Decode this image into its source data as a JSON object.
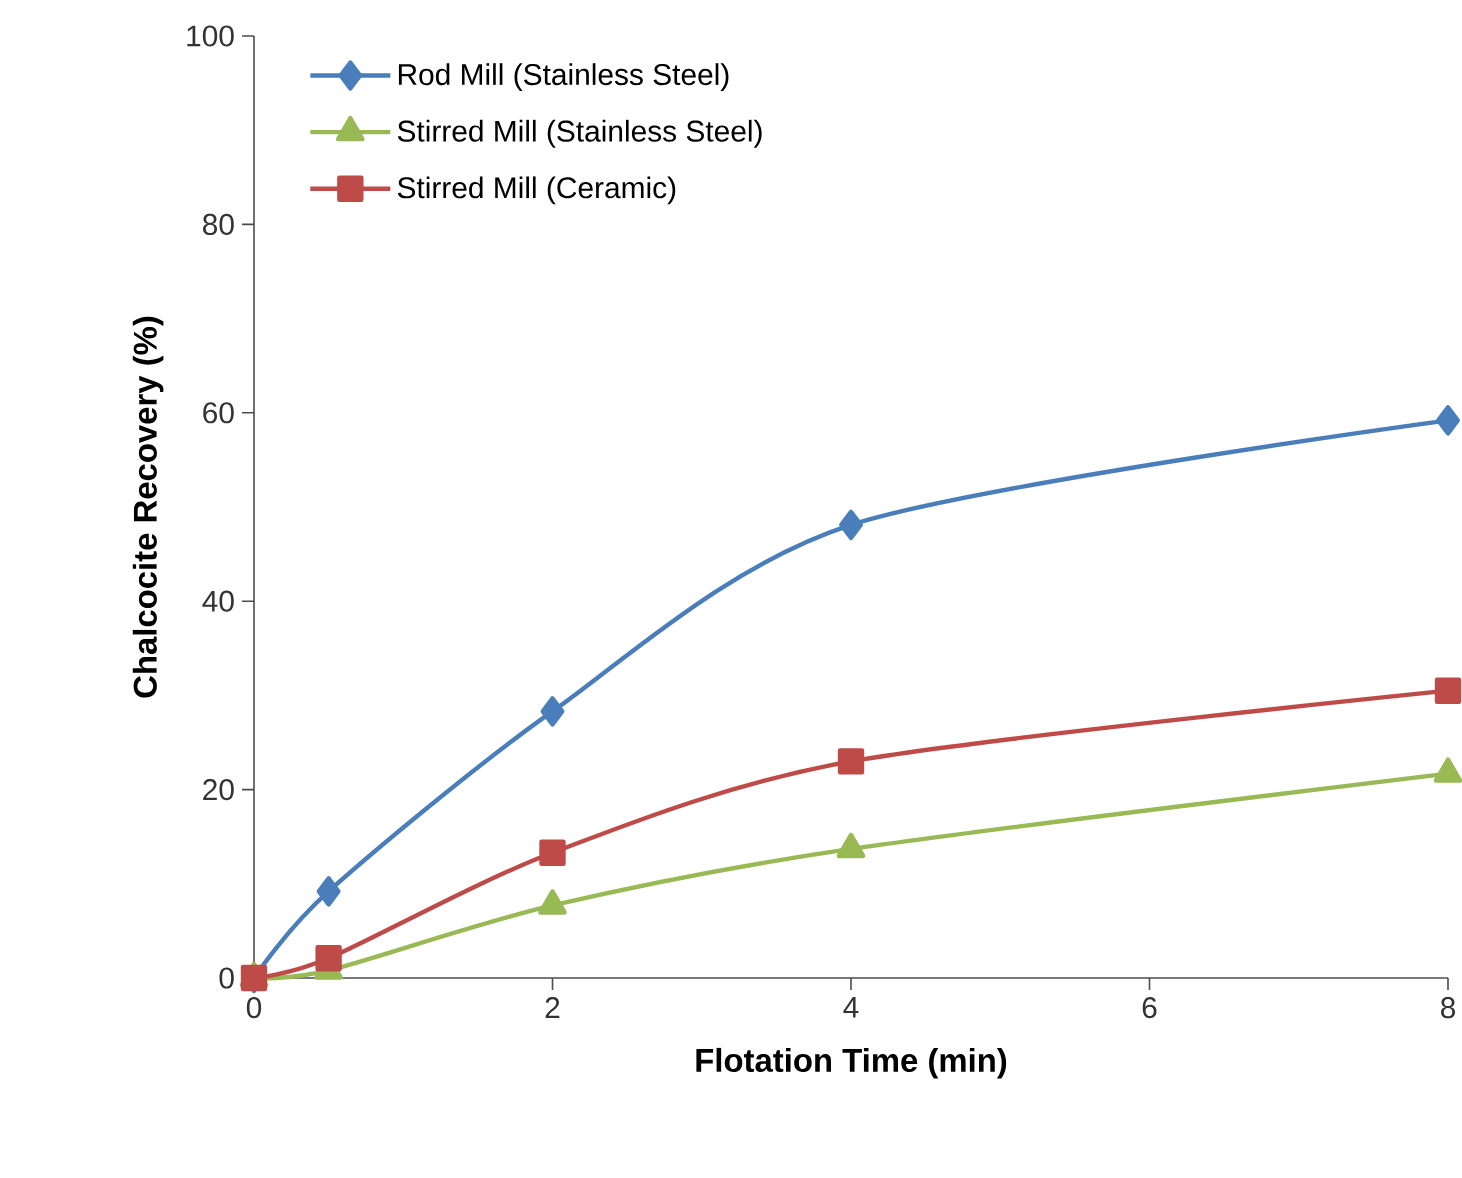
{
  "chart_data": {
    "type": "line",
    "xlabel": "Flotation Time (min)",
    "ylabel": "Chalcocite Recovery (%)",
    "x": [
      0,
      0.5,
      2,
      4,
      8
    ],
    "series": [
      {
        "name": "Rod Mill (Stainless Steel)",
        "color": "#4a7ebb",
        "marker": "diamond",
        "values": [
          0,
          9.2,
          28.3,
          48.1,
          59.2
        ]
      },
      {
        "name": "Stirred Mill (Stainless Steel)",
        "color": "#98b954",
        "marker": "triangle",
        "values": [
          0,
          0.8,
          7.7,
          13.7,
          21.7
        ]
      },
      {
        "name": "Stirred Mill (Ceramic)",
        "color": "#be4b48",
        "marker": "square",
        "values": [
          0,
          2.1,
          13.3,
          23,
          30.5
        ]
      }
    ],
    "xlim": [
      0,
      8
    ],
    "ylim": [
      0,
      100
    ],
    "xticks": [
      0,
      2,
      4,
      6,
      8
    ],
    "yticks": [
      0,
      20,
      40,
      60,
      80,
      100
    ],
    "grid": false,
    "legend": "top left",
    "line_style": "solid"
  }
}
